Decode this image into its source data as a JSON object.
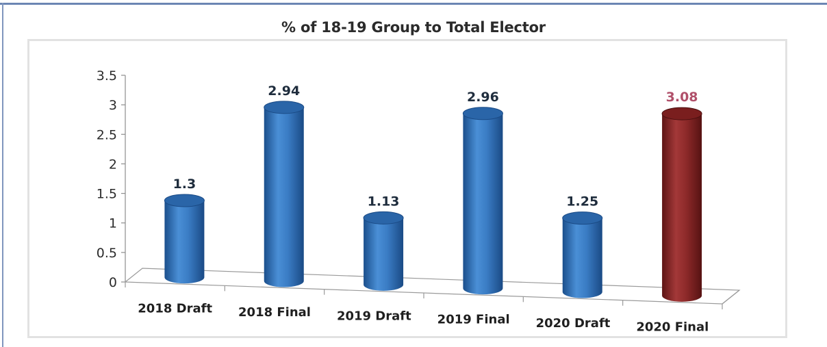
{
  "chart_data": {
    "type": "bar",
    "title": "% of 18-19 Group to Total Elector",
    "xlabel": "",
    "ylabel": "",
    "categories": [
      "2018 Draft",
      "2018 Final",
      "2019 Draft",
      "2019 Final",
      "2020 Draft",
      "2020 Final"
    ],
    "values": [
      1.3,
      2.94,
      1.13,
      2.96,
      1.25,
      3.08
    ],
    "value_labels": [
      "1.3",
      "2.94",
      "1.13",
      "2.96",
      "1.25",
      "3.08"
    ],
    "ylim": [
      0,
      3.5
    ],
    "yticks": [
      "0",
      "0.5",
      "1",
      "1.5",
      "2",
      "2.5",
      "3",
      "3.5"
    ],
    "grid": false,
    "legend": "none",
    "style": "3d-cylinder",
    "colors": {
      "default_bar": "#2e6fb8",
      "highlight_bar": "#8a2424",
      "label_default": "#1f2d3d",
      "label_highlight": "#b0506a"
    },
    "highlight_index": 5
  }
}
